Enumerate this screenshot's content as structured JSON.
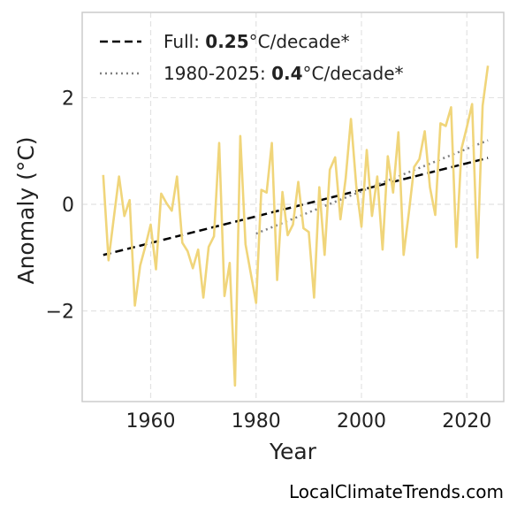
{
  "chart_data": {
    "type": "line",
    "title": "",
    "xlabel": "Year",
    "ylabel": "Anomaly (°C)",
    "xlim": [
      1947,
      2027
    ],
    "ylim": [
      -3.7,
      3.6
    ],
    "xticks": [
      1960,
      1980,
      2000,
      2020
    ],
    "yticks": [
      -2,
      0,
      2
    ],
    "ytick_labels": [
      "−2",
      "0",
      "2"
    ],
    "grid": true,
    "legend_position": "top-left",
    "colors": {
      "series": "#f0d57a",
      "full_trend": "#000000",
      "recent_trend": "#808080"
    },
    "series": [
      {
        "x": [
          1951,
          1952,
          1953,
          1954,
          1955,
          1956,
          1957,
          1958,
          1959,
          1960,
          1961,
          1962,
          1963,
          1964,
          1965,
          1966,
          1967,
          1968,
          1969,
          1970,
          1971,
          1972,
          1973,
          1974,
          1975,
          1976,
          1977,
          1978,
          1979,
          1980,
          1981,
          1982,
          1983,
          1984,
          1985,
          1986,
          1987,
          1988,
          1989,
          1990,
          1991,
          1992,
          1993,
          1994,
          1995,
          1996,
          1997,
          1998,
          1999,
          2000,
          2001,
          2002,
          2003,
          2004,
          2005,
          2006,
          2007,
          2008,
          2009,
          2010,
          2011,
          2012,
          2013,
          2014,
          2015,
          2016,
          2017,
          2018,
          2019,
          2020,
          2021,
          2022,
          2023,
          2024
        ],
        "values": [
          0.55,
          -1.05,
          -0.25,
          0.52,
          -0.22,
          0.08,
          -1.9,
          -1.15,
          -0.78,
          -0.38,
          -1.22,
          0.2,
          0.02,
          -0.12,
          0.52,
          -0.72,
          -0.88,
          -1.2,
          -0.85,
          -1.75,
          -0.8,
          -0.6,
          1.15,
          -1.72,
          -1.1,
          -3.4,
          1.28,
          -0.75,
          -1.3,
          -1.85,
          0.27,
          0.22,
          1.15,
          -1.42,
          0.23,
          -0.58,
          -0.38,
          0.42,
          -0.45,
          -0.52,
          -1.75,
          0.32,
          -0.95,
          0.65,
          0.88,
          -0.28,
          0.48,
          1.6,
          0.35,
          -0.42,
          1.02,
          -0.22,
          0.52,
          -0.85,
          0.9,
          0.22,
          1.35,
          -0.95,
          -0.15,
          0.7,
          0.85,
          1.37,
          0.32,
          -0.2,
          1.52,
          1.47,
          1.82,
          -0.8,
          1.05,
          1.45,
          1.88,
          -1.0,
          1.85,
          2.6
        ]
      }
    ],
    "trend_lines": [
      {
        "name": "full",
        "x": [
          1951,
          2024
        ],
        "y": [
          -0.95,
          0.87
        ],
        "style": "dashed"
      },
      {
        "name": "recent",
        "x": [
          1980,
          2024
        ],
        "y": [
          -0.55,
          1.2
        ],
        "style": "dotted"
      }
    ],
    "legend": [
      {
        "prefix": "Full: ",
        "bold": "0.25",
        "suffix": "°C/decade*"
      },
      {
        "prefix": "1980-2025: ",
        "bold": "0.4",
        "suffix": "°C/decade*"
      }
    ]
  },
  "source_label": "LocalClimateTrends.com"
}
